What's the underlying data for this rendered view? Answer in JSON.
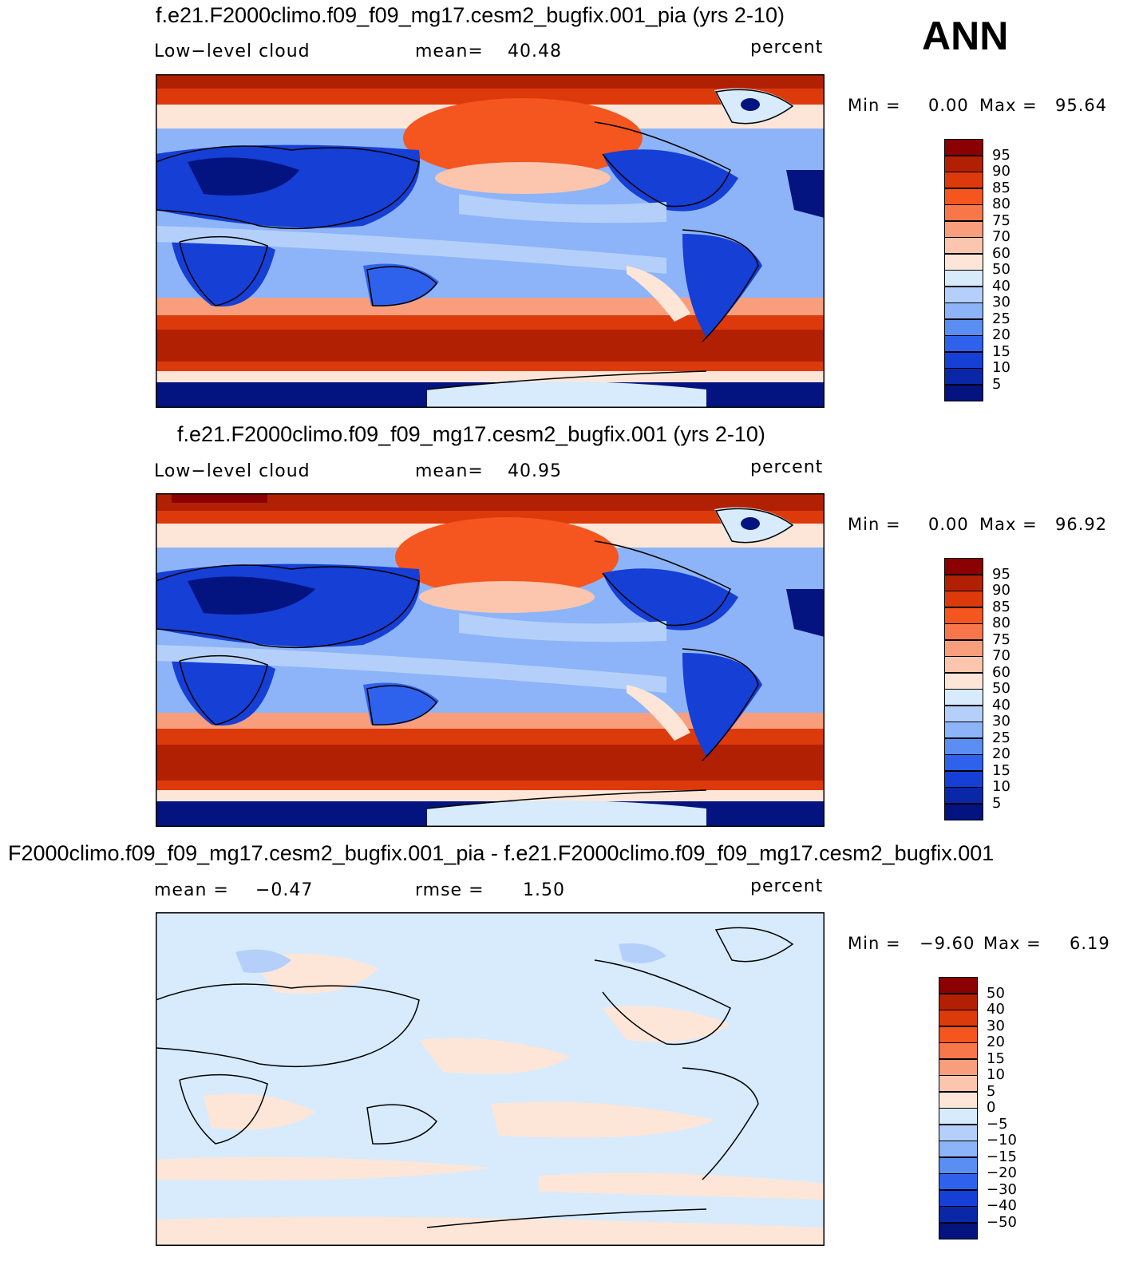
{
  "season": "ANN",
  "panels": [
    {
      "title": "f.e21.F2000climo.f09_f09_mg17.cesm2_bugfix.001_pia (yrs 2-10)",
      "left_label": "Low−level cloud",
      "mid_label": "mean=",
      "mid_value": "40.48",
      "units": "percent",
      "min_label": "Min =",
      "min_value": "0.00",
      "max_label": "Max =",
      "max_value": "95.64",
      "colorbar_labels": [
        "95",
        "90",
        "85",
        "80",
        "75",
        "70",
        "60",
        "50",
        "40",
        "30",
        "25",
        "20",
        "15",
        "10",
        "5"
      ]
    },
    {
      "title": "f.e21.F2000climo.f09_f09_mg17.cesm2_bugfix.001 (yrs 2-10)",
      "left_label": "Low−level cloud",
      "mid_label": "mean=",
      "mid_value": "40.95",
      "units": "percent",
      "min_label": "Min =",
      "min_value": "0.00",
      "max_label": "Max =",
      "max_value": "96.92",
      "colorbar_labels": [
        "95",
        "90",
        "85",
        "80",
        "75",
        "70",
        "60",
        "50",
        "40",
        "30",
        "25",
        "20",
        "15",
        "10",
        "5"
      ]
    },
    {
      "title": "F2000climo.f09_f09_mg17.cesm2_bugfix.001_pia - f.e21.F2000climo.f09_f09_mg17.cesm2_bugfix.001",
      "left_label": "mean =",
      "left_value": "−0.47",
      "mid_label": "rmse =",
      "mid_value": "1.50",
      "units": "percent",
      "min_label": "Min =",
      "min_value": "−9.60",
      "max_label": "Max =",
      "max_value": "6.19",
      "colorbar_labels": [
        "50",
        "40",
        "30",
        "20",
        "15",
        "10",
        "5",
        "0",
        "−5",
        "−10",
        "−15",
        "−20",
        "−30",
        "−40",
        "−50"
      ]
    }
  ],
  "colors": {
    "palette": [
      "#8b0000",
      "#b22004",
      "#dd3a0b",
      "#f5551f",
      "#f7774a",
      "#f99e7c",
      "#fbc6ad",
      "#fde6d8",
      "#d7ebfd",
      "#b4d0fa",
      "#8db4f8",
      "#5a8ef3",
      "#2f62ec",
      "#153fd5",
      "#0a27a8",
      "#03137f"
    ]
  }
}
